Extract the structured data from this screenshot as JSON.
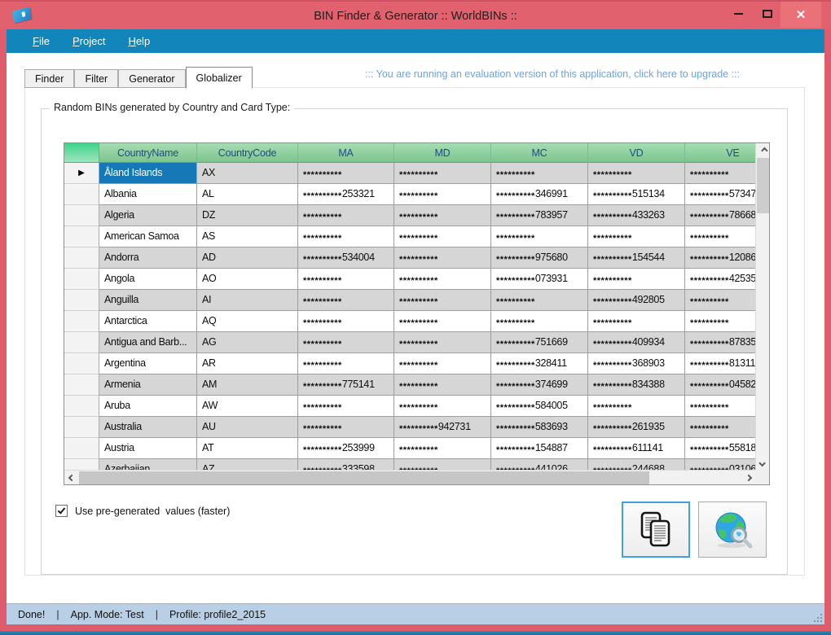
{
  "window": {
    "title": "BIN Finder & Generator :: WorldBINs ::"
  },
  "menu": {
    "items": [
      "File",
      "Project",
      "Help"
    ]
  },
  "tabs": {
    "items": [
      "Finder",
      "Filter",
      "Generator",
      "Globalizer"
    ],
    "active": "Globalizer"
  },
  "evaluation_notice": "::: You are running an evaluation version of this application, click here to upgrade :::",
  "groupbox_label": "Random BINs generated by Country and Card Type:",
  "grid": {
    "columns": [
      "CountryName",
      "CountryCode",
      "MA",
      "MD",
      "MC",
      "VD",
      "VE"
    ],
    "selected_row": 0,
    "rows": [
      [
        "Åland Islands",
        "AX",
        "**********",
        "**********",
        "**********",
        "**********",
        "**********"
      ],
      [
        "Albania",
        "AL",
        "**********253321",
        "**********",
        "**********346991",
        "**********515134",
        "**********57347"
      ],
      [
        "Algeria",
        "DZ",
        "**********",
        "**********",
        "**********783957",
        "**********433263",
        "**********78668"
      ],
      [
        "American Samoa",
        "AS",
        "**********",
        "**********",
        "**********",
        "**********",
        "**********"
      ],
      [
        "Andorra",
        "AD",
        "**********534004",
        "**********",
        "**********975680",
        "**********154544",
        "**********12086"
      ],
      [
        "Angola",
        "AO",
        "**********",
        "**********",
        "**********073931",
        "**********",
        "**********42535"
      ],
      [
        "Anguilla",
        "AI",
        "**********",
        "**********",
        "**********",
        "**********492805",
        "**********"
      ],
      [
        "Antarctica",
        "AQ",
        "**********",
        "**********",
        "**********",
        "**********",
        "**********"
      ],
      [
        "Antigua and Barb...",
        "AG",
        "**********",
        "**********",
        "**********751669",
        "**********409934",
        "**********87835"
      ],
      [
        "Argentina",
        "AR",
        "**********",
        "**********",
        "**********328411",
        "**********368903",
        "**********81311"
      ],
      [
        "Armenia",
        "AM",
        "**********775141",
        "**********",
        "**********374699",
        "**********834388",
        "**********04582"
      ],
      [
        "Aruba",
        "AW",
        "**********",
        "**********",
        "**********584005",
        "**********",
        "**********"
      ],
      [
        "Australia",
        "AU",
        "**********",
        "**********942731",
        "**********583693",
        "**********261935",
        "**********"
      ],
      [
        "Austria",
        "AT",
        "**********253999",
        "**********",
        "**********154887",
        "**********611141",
        "**********55818"
      ],
      [
        "Azerbaijan",
        "AZ",
        "**********333598",
        "**********",
        "**********441026",
        "**********244688",
        "**********03106"
      ]
    ]
  },
  "checkbox": {
    "label": "Use pre-generated  values (faster)",
    "checked": true
  },
  "buttons": {
    "copy": "copy-results",
    "globe": "web-lookup"
  },
  "status_bar": {
    "items": [
      "Done!",
      "App. Mode: Test",
      "Profile: profile2_2015"
    ],
    "separator": "|"
  },
  "colors": {
    "title_bar": "#E2616F",
    "menu_bar": "#1286BB",
    "grid_header_green": "#7CC48F",
    "selected_cell": "#1778B7",
    "eval_link": "#6FA2DF",
    "status_bar": "#B9CFE5",
    "row_alt_gray": "#D6D6D6"
  }
}
